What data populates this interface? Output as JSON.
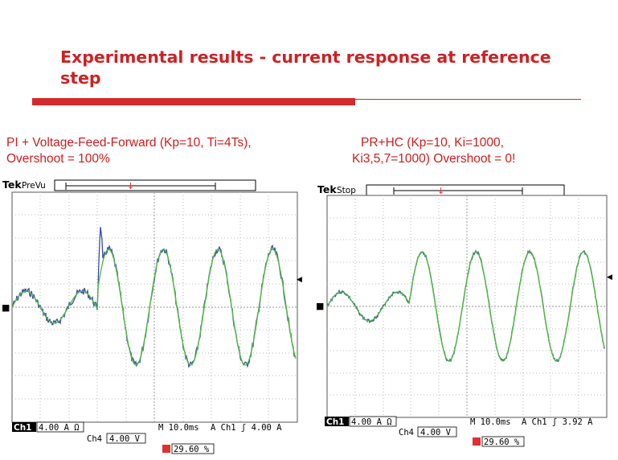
{
  "slide": {
    "title": "Experimental results  - current response at reference step"
  },
  "captions": {
    "left_line1": "PI + Voltage-Feed-Forward (Kp=10, Ti=4Ts),",
    "left_line2": "Overshoot = 100%",
    "right_line1": "PR+HC (Kp=10, Ki=1000,",
    "right_line2": "Ki3,5,7=1000) Overshoot = 0!"
  },
  "scopes": [
    {
      "brand": "Tek",
      "state": "PreVu",
      "ch1_badge": "Ch1",
      "ch1_scale": "4.00 A Ω",
      "timebase": "M 10.0ms",
      "trigger": "A  Ch1  ʃ   4.00 A",
      "ch4_label": "Ch4",
      "ch4_scale": "4.00 V",
      "trigger_pos": "29.60 %"
    },
    {
      "brand": "Tek",
      "state": "Stop",
      "ch1_badge": "Ch1",
      "ch1_scale": "4.00 A Ω",
      "timebase": "M 10.0ms",
      "trigger": "A  Ch1  ʃ   3.92 A",
      "ch4_label": "Ch4",
      "ch4_scale": "4.00 V",
      "trigger_pos": "29.60 %"
    }
  ],
  "colors": {
    "title_red": "#cc2222",
    "trace_measured": "#3a4aa8",
    "trace_reference": "#4cbe36"
  }
}
